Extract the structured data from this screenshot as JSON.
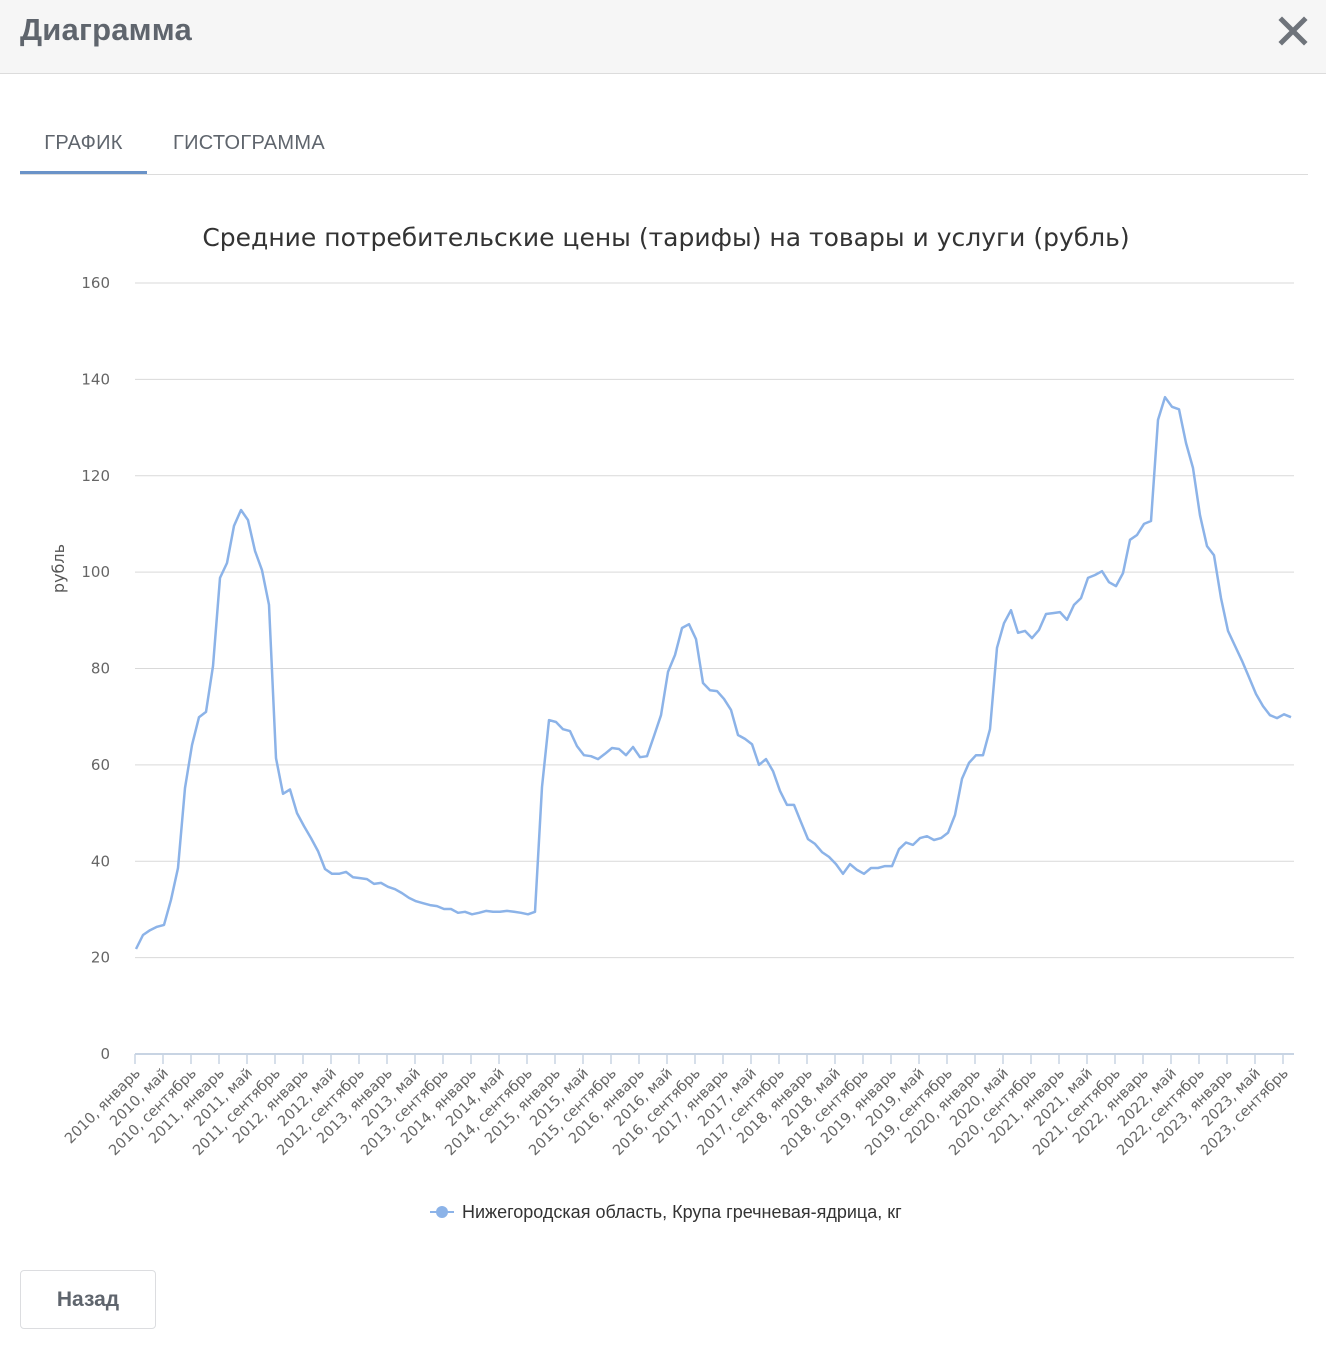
{
  "dialog": {
    "title": "Диаграмма",
    "close_icon": "close-icon"
  },
  "tabs": [
    {
      "label": "ГРАФИК",
      "active": true
    },
    {
      "label": "ГИСТОГРАММА",
      "active": false
    }
  ],
  "footer": {
    "back_label": "Назад"
  },
  "colors": {
    "series": "#8cb3e8",
    "tab_underline": "#6a93c8",
    "grid": "#d9d9d9",
    "axis": "#c8d4e3"
  },
  "chart_data": {
    "type": "line",
    "title": "Средние потребительские цены (тарифы) на товары и услуги (рубль)",
    "xlabel": "",
    "ylabel": "рубль",
    "ylim": [
      0,
      160
    ],
    "yticks": [
      0,
      20,
      40,
      60,
      80,
      100,
      120,
      140,
      160
    ],
    "grid": true,
    "legend_position": "bottom",
    "x_tick_labels": [
      "2010, январь",
      "2010, май",
      "2010, сентябрь",
      "2011, январь",
      "2011, май",
      "2011, сентябрь",
      "2012, январь",
      "2012, май",
      "2012, сентябрь",
      "2013, январь",
      "2013, май",
      "2013, сентябрь",
      "2014, январь",
      "2014, май",
      "2014, сентябрь",
      "2015, январь",
      "2015, май",
      "2015, сентябрь",
      "2016, январь",
      "2016, май",
      "2016, сентябрь",
      "2017, январь",
      "2017, май",
      "2017, сентябрь",
      "2018, январь",
      "2018, май",
      "2018, сентябрь",
      "2019, январь",
      "2019, май",
      "2019, сентябрь",
      "2020, январь",
      "2020, май",
      "2020, сентябрь",
      "2021, январь",
      "2021, май",
      "2021, сентябрь",
      "2022, январь",
      "2022, май",
      "2022, сентябрь",
      "2023, январь",
      "2023, май",
      "2023, сентябрь"
    ],
    "x_start": "2010, январь",
    "x_step": "month",
    "series": [
      {
        "name": "Нижегородская область, Крупа гречневая-ядрица, кг",
        "values": [
          21.8,
          24.7,
          25.7,
          26.4,
          26.8,
          32.0,
          38.6,
          55.2,
          64.1,
          69.9,
          71.0,
          80.5,
          98.8,
          101.9,
          109.6,
          112.9,
          110.8,
          104.4,
          100.4,
          93.2,
          61.4,
          54.0,
          54.9,
          50.0,
          47.3,
          44.8,
          42.1,
          38.4,
          37.4,
          37.4,
          37.8,
          36.7,
          36.5,
          36.3,
          35.3,
          35.5,
          34.7,
          34.2,
          33.4,
          32.4,
          31.7,
          31.3,
          30.9,
          30.7,
          30.1,
          30.1,
          29.3,
          29.5,
          29.0,
          29.3,
          29.7,
          29.5,
          29.5,
          29.7,
          29.5,
          29.3,
          29.0,
          29.5,
          55.4,
          69.3,
          68.9,
          67.4,
          67.0,
          63.9,
          62.0,
          61.8,
          61.2,
          62.3,
          63.5,
          63.3,
          62.0,
          63.7,
          61.6,
          61.8,
          66.0,
          70.3,
          79.3,
          82.8,
          88.4,
          89.2,
          86.1,
          77.0,
          75.5,
          75.3,
          73.7,
          71.4,
          66.2,
          65.4,
          64.3,
          60.0,
          61.2,
          58.7,
          54.6,
          51.7,
          51.7,
          48.1,
          44.6,
          43.6,
          41.9,
          40.9,
          39.4,
          37.4,
          39.4,
          38.2,
          37.4,
          38.6,
          38.6,
          39.0,
          39.0,
          42.5,
          43.9,
          43.4,
          44.8,
          45.2,
          44.4,
          44.8,
          45.9,
          49.6,
          57.1,
          60.4,
          62.0,
          62.0,
          67.4,
          84.3,
          89.4,
          92.1,
          87.4,
          87.8,
          86.3,
          88.0,
          91.3,
          91.5,
          91.7,
          90.1,
          93.2,
          94.6,
          98.8,
          99.4,
          100.2,
          97.9,
          97.1,
          99.8,
          106.7,
          107.7,
          110.0,
          110.6,
          131.6,
          136.3,
          134.3,
          133.8,
          126.8,
          121.6,
          111.8,
          105.4,
          103.5,
          94.6,
          87.8,
          84.7,
          81.6,
          78.2,
          74.7,
          72.2,
          70.3,
          69.7,
          70.5,
          69.9
        ]
      }
    ]
  }
}
